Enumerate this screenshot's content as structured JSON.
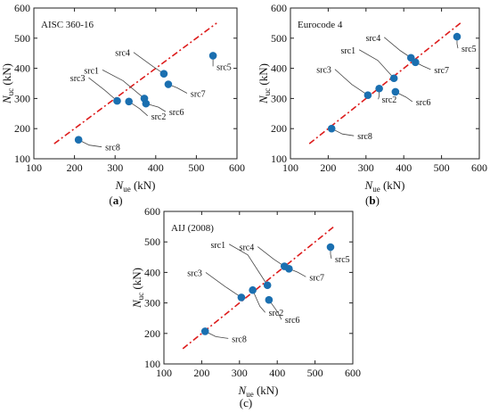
{
  "figure": {
    "captions": [
      "(a)",
      "(b)",
      "(c)"
    ]
  },
  "chart_data": [
    {
      "type": "scatter",
      "corner_label": "AISC 360-16",
      "xlabel": {
        "main": "N",
        "sub": "ue",
        "unit": " (kN)"
      },
      "ylabel": {
        "main": "N",
        "sub": "uc",
        "unit": " (kN)"
      },
      "xlim": [
        100,
        600
      ],
      "ylim": [
        100,
        600
      ],
      "xticks": [
        100,
        200,
        300,
        400,
        500,
        600
      ],
      "yticks": [
        100,
        200,
        300,
        400,
        500,
        600
      ],
      "reference_line": {
        "from": [
          150,
          150
        ],
        "to": [
          550,
          550
        ],
        "color": "#dd1c1c",
        "style": "dash-dot"
      },
      "marker_color": "#1a6fb0",
      "points": [
        {
          "label": "src1",
          "x": 372,
          "y": 300
        },
        {
          "label": "src2",
          "x": 334,
          "y": 290
        },
        {
          "label": "src3",
          "x": 305,
          "y": 292
        },
        {
          "label": "src4",
          "x": 420,
          "y": 382
        },
        {
          "label": "src5",
          "x": 541,
          "y": 442
        },
        {
          "label": "src6",
          "x": 376,
          "y": 283
        },
        {
          "label": "src7",
          "x": 431,
          "y": 347
        },
        {
          "label": "src8",
          "x": 210,
          "y": 163
        }
      ]
    },
    {
      "type": "scatter",
      "corner_label": "Eurocode 4",
      "xlabel": {
        "main": "N",
        "sub": "ue",
        "unit": " (kN)"
      },
      "ylabel": {
        "main": "N",
        "sub": "uc",
        "unit": " (kN)"
      },
      "xlim": [
        100,
        600
      ],
      "ylim": [
        100,
        600
      ],
      "xticks": [
        100,
        200,
        300,
        400,
        500,
        600
      ],
      "yticks": [
        100,
        200,
        300,
        400,
        500,
        600
      ],
      "reference_line": {
        "from": [
          150,
          150
        ],
        "to": [
          550,
          550
        ],
        "color": "#dd1c1c",
        "style": "dash-dot"
      },
      "marker_color": "#1a6fb0",
      "points": [
        {
          "label": "src1",
          "x": 374,
          "y": 367
        },
        {
          "label": "src2",
          "x": 335,
          "y": 333
        },
        {
          "label": "src3",
          "x": 305,
          "y": 311
        },
        {
          "label": "src4",
          "x": 419,
          "y": 435
        },
        {
          "label": "src5",
          "x": 541,
          "y": 505
        },
        {
          "label": "src6",
          "x": 378,
          "y": 322
        },
        {
          "label": "src7",
          "x": 431,
          "y": 420
        },
        {
          "label": "src8",
          "x": 209,
          "y": 200
        }
      ]
    },
    {
      "type": "scatter",
      "corner_label": "AIJ (2008)",
      "xlabel": {
        "main": "N",
        "sub": "ue",
        "unit": " (kN)"
      },
      "ylabel": {
        "main": "N",
        "sub": "uc",
        "unit": " (kN)"
      },
      "xlim": [
        100,
        600
      ],
      "ylim": [
        100,
        600
      ],
      "xticks": [
        100,
        200,
        300,
        400,
        500,
        600
      ],
      "yticks": [
        100,
        200,
        300,
        400,
        500,
        600
      ],
      "reference_line": {
        "from": [
          150,
          150
        ],
        "to": [
          550,
          550
        ],
        "color": "#dd1c1c",
        "style": "dash-dot"
      },
      "marker_color": "#1a6fb0",
      "points": [
        {
          "label": "src1",
          "x": 374,
          "y": 358
        },
        {
          "label": "src2",
          "x": 335,
          "y": 342
        },
        {
          "label": "src3",
          "x": 305,
          "y": 318
        },
        {
          "label": "src4",
          "x": 419,
          "y": 420
        },
        {
          "label": "src5",
          "x": 541,
          "y": 483
        },
        {
          "label": "src6",
          "x": 378,
          "y": 310
        },
        {
          "label": "src7",
          "x": 431,
          "y": 412
        },
        {
          "label": "src8",
          "x": 209,
          "y": 207
        }
      ]
    }
  ]
}
